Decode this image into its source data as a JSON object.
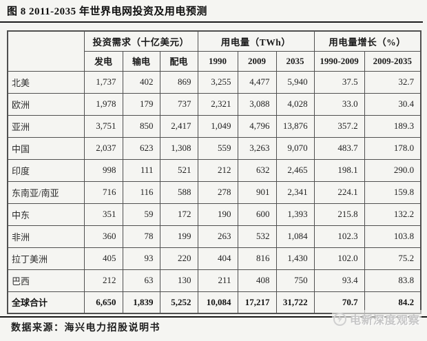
{
  "title": "图 8 2011-2035 年世界电网投资及用电预测",
  "chart_data": {
    "type": "table",
    "title": "图 8 2011-2035 年世界电网投资及用电预测",
    "col_groups": [
      "投资需求（十亿美元）",
      "用电量（TWh）",
      "用电量增长（%）"
    ],
    "sub_headers": [
      "发电",
      "输电",
      "配电",
      "1990",
      "2009",
      "2035",
      "1990-2009",
      "2009-2035"
    ],
    "row_header_label": "",
    "rows": [
      [
        "北美",
        "1,737",
        "402",
        "869",
        "3,255",
        "4,477",
        "5,940",
        "37.5",
        "32.7"
      ],
      [
        "欧洲",
        "1,978",
        "179",
        "737",
        "2,321",
        "3,088",
        "4,028",
        "33.0",
        "30.4"
      ],
      [
        "亚洲",
        "3,751",
        "850",
        "2,417",
        "1,049",
        "4,796",
        "13,876",
        "357.2",
        "189.3"
      ],
      [
        "中国",
        "2,037",
        "623",
        "1,308",
        "559",
        "3,263",
        "9,070",
        "483.7",
        "178.0"
      ],
      [
        "印度",
        "998",
        "111",
        "521",
        "212",
        "632",
        "2,465",
        "198.1",
        "290.0"
      ],
      [
        "东南亚/南亚",
        "716",
        "116",
        "588",
        "278",
        "901",
        "2,341",
        "224.1",
        "159.8"
      ],
      [
        "中东",
        "351",
        "59",
        "172",
        "190",
        "600",
        "1,393",
        "215.8",
        "132.2"
      ],
      [
        "非洲",
        "360",
        "78",
        "199",
        "263",
        "532",
        "1,084",
        "102.3",
        "103.8"
      ],
      [
        "拉丁美洲",
        "405",
        "93",
        "220",
        "404",
        "816",
        "1,430",
        "102.0",
        "75.2"
      ],
      [
        "巴西",
        "212",
        "63",
        "130",
        "211",
        "408",
        "750",
        "93.4",
        "83.8"
      ]
    ],
    "total_row": [
      "全球合计",
      "6,650",
      "1,839",
      "5,252",
      "10,084",
      "17,217",
      "31,722",
      "70.7",
      "84.2"
    ]
  },
  "footer": {
    "source": "数据来源：海兴电力招股说明书"
  },
  "watermark": {
    "text": "电新深度观察",
    "icon": "lightning-icon",
    "color": "#c6c6c6"
  }
}
